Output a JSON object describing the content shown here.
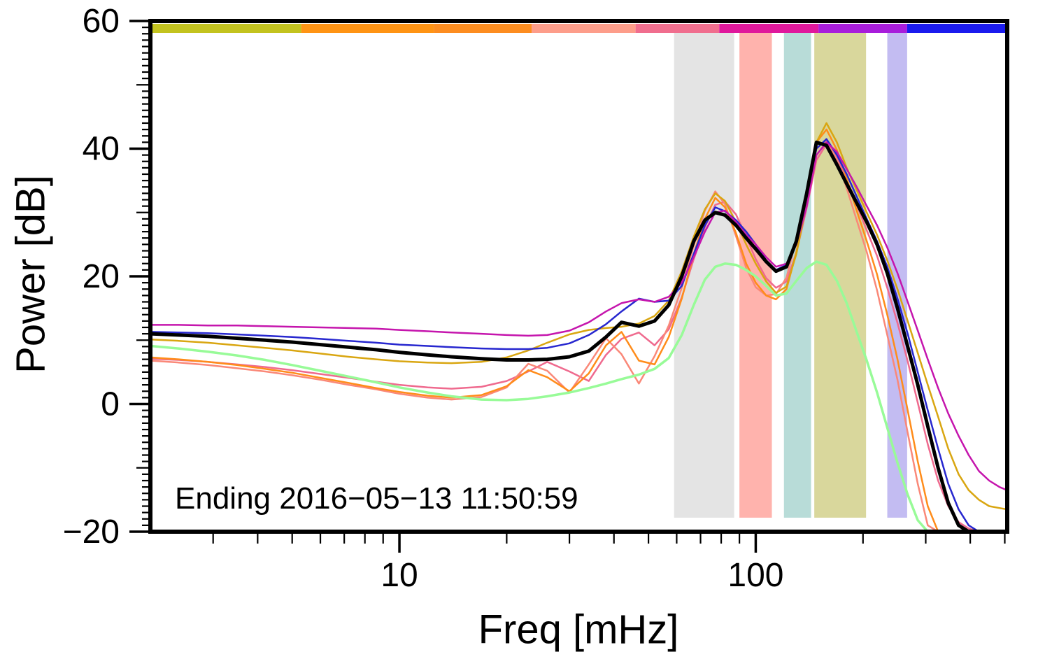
{
  "chart_data": {
    "type": "line",
    "title": "",
    "xlabel": "Freq [mHz]",
    "ylabel": "Power [dB]",
    "annotation": "Ending 2016−05−13 11:50:59",
    "xscale": "log",
    "xlim": [
      2,
      508
    ],
    "ylim": [
      -20,
      60
    ],
    "grid": false,
    "legend": null,
    "frame_color": "#000000",
    "background_color": "#ffffff",
    "y_major_ticks": [
      -20,
      0,
      20,
      40,
      60
    ],
    "y_major_tick_labels": [
      "−20",
      "0",
      "20",
      "40",
      "60"
    ],
    "y_minor_step": 1,
    "x_major_ticks": [
      10,
      100
    ],
    "x_major_tick_labels": [
      "10",
      "100"
    ],
    "x_minor_ticks": [
      3,
      4,
      5,
      6,
      7,
      8,
      9,
      20,
      30,
      40,
      50,
      60,
      70,
      80,
      90,
      200,
      300,
      400,
      500
    ],
    "bands": [
      {
        "name": "band-gray",
        "color": "#e4e4e4",
        "from": 59,
        "to": 87
      },
      {
        "name": "band-red",
        "color": "#ffb3ad",
        "from": 90,
        "to": 111
      },
      {
        "name": "band-teal",
        "color": "#b8dcd8",
        "from": 120,
        "to": 143
      },
      {
        "name": "band-olive",
        "color": "#d9d79c",
        "from": 146,
        "to": 204
      },
      {
        "name": "band-purple",
        "color": "#c3bcf2",
        "from": 234,
        "to": 266
      }
    ],
    "top_bar_segments": [
      {
        "color": "#c3c31f",
        "from": 2,
        "to": 5.3
      },
      {
        "color": "#ff9414",
        "from": 5.3,
        "to": 12.5
      },
      {
        "color": "#fd8d20",
        "from": 12.5,
        "to": 23.5
      },
      {
        "color": "#fd9d8a",
        "from": 23.5,
        "to": 46
      },
      {
        "color": "#f06e8e",
        "from": 46,
        "to": 79
      },
      {
        "color": "#e0189c",
        "from": 79,
        "to": 150
      },
      {
        "color": "#a81ddb",
        "from": 150,
        "to": 266
      },
      {
        "color": "#1b1bee",
        "from": 266,
        "to": 508
      }
    ],
    "x": [
      2,
      2.4,
      2.9,
      3.5,
      4.2,
      5,
      6,
      7.2,
      8.6,
      10,
      12,
      14,
      17,
      20,
      23,
      26,
      30,
      34,
      38,
      42,
      47,
      52,
      57,
      62,
      67,
      72,
      77,
      82,
      88,
      94,
      100,
      107,
      114,
      122,
      130,
      139,
      148,
      158,
      169,
      180,
      192,
      205,
      219,
      234,
      250,
      267,
      285,
      304,
      325,
      347,
      371,
      396,
      423,
      452,
      483,
      508
    ],
    "series": [
      {
        "name": "spectrum-pink",
        "color": "#ef6a8e",
        "width": 2.5,
        "values": [
          7.1,
          6.9,
          6.6,
          6.2,
          5.8,
          5.3,
          4.7,
          4.1,
          3.5,
          3.0,
          2.6,
          2.4,
          2.7,
          3.6,
          5.1,
          6.6,
          5.1,
          3.6,
          7.7,
          10.2,
          11.2,
          9.2,
          11.7,
          16.7,
          22.7,
          27.7,
          31.2,
          31.7,
          29.7,
          26.2,
          22.7,
          19.7,
          18.2,
          19.2,
          23.7,
          30.7,
          38.2,
          40.7,
          38.7,
          35.2,
          31.2,
          27.2,
          23.2,
          18.2,
          12.7,
          6.7,
          0.2,
          -6.3,
          -12.0,
          -16.0,
          -18.5,
          -19.5,
          -20,
          -20,
          -20,
          -20
        ]
      },
      {
        "name": "spectrum-salmon",
        "color": "#fa8878",
        "width": 2.5,
        "values": [
          6.8,
          6.5,
          6.1,
          5.6,
          5.1,
          4.5,
          3.8,
          3.0,
          2.3,
          1.6,
          1.0,
          0.7,
          1.1,
          2.6,
          6.3,
          5.2,
          1.8,
          6.2,
          10.3,
          7.8,
          3.2,
          7.5,
          12.3,
          18.2,
          24.8,
          30.3,
          33.3,
          31.3,
          26.3,
          21.3,
          18.3,
          17.0,
          17.2,
          19.8,
          25.8,
          33.3,
          40.0,
          41.3,
          38.3,
          33.8,
          28.8,
          23.8,
          17.8,
          10.8,
          3.8,
          -4.5,
          -12.5,
          -19.0,
          -20,
          -20,
          -20,
          -20,
          -20,
          -20,
          -20,
          -20
        ]
      },
      {
        "name": "spectrum-orange",
        "color": "#ff8c1a",
        "width": 2.5,
        "values": [
          7.3,
          7.0,
          6.6,
          6.1,
          5.5,
          4.9,
          4.1,
          3.3,
          2.5,
          1.9,
          1.3,
          1.0,
          1.4,
          2.8,
          5.3,
          4.2,
          2.0,
          4.8,
          9.2,
          11.3,
          6.8,
          6.2,
          10.5,
          16.5,
          23.5,
          29.0,
          32.3,
          30.8,
          26.8,
          22.0,
          19.0,
          17.0,
          16.4,
          18.0,
          23.8,
          32.0,
          41.0,
          43.0,
          39.8,
          35.3,
          30.3,
          25.5,
          20.3,
          14.0,
          7.0,
          -1.0,
          -9.0,
          -16.0,
          -20,
          -20,
          -20,
          -20,
          -20,
          -20,
          -20,
          -20
        ]
      },
      {
        "name": "spectrum-gold",
        "color": "#d9a611",
        "width": 2.5,
        "values": [
          10.1,
          9.9,
          9.6,
          9.2,
          8.8,
          8.4,
          7.9,
          7.4,
          7.0,
          6.7,
          6.5,
          6.4,
          6.6,
          7.3,
          8.4,
          9.6,
          10.9,
          11.6,
          11.9,
          12.1,
          12.6,
          13.8,
          16.2,
          20.8,
          26.2,
          30.5,
          33.0,
          31.8,
          28.5,
          25.0,
          22.0,
          19.2,
          17.4,
          18.4,
          23.5,
          31.5,
          41.0,
          44.0,
          41.0,
          37.0,
          33.5,
          30.0,
          26.5,
          22.5,
          18.0,
          13.0,
          8.0,
          3.0,
          -2.0,
          -7.0,
          -11.0,
          -13.5,
          -15.0,
          -16.0,
          -16.3,
          -16.5
        ]
      },
      {
        "name": "spectrum-blue",
        "color": "#2727cf",
        "width": 2.5,
        "values": [
          11.3,
          11.2,
          11.1,
          10.9,
          10.7,
          10.5,
          10.2,
          9.9,
          9.6,
          9.3,
          9.1,
          8.9,
          8.7,
          8.6,
          8.6,
          8.8,
          9.5,
          10.8,
          12.5,
          14.5,
          16.5,
          16.0,
          16.2,
          18.5,
          23.5,
          28.0,
          30.8,
          30.2,
          28.8,
          27.0,
          25.0,
          22.5,
          21.0,
          21.8,
          25.5,
          32.5,
          40.0,
          41.5,
          39.0,
          36.0,
          32.5,
          29.0,
          25.5,
          21.5,
          16.5,
          11.0,
          5.0,
          -1.0,
          -7.0,
          -12.5,
          -16.5,
          -19.0,
          -20,
          -20,
          -20,
          -20
        ]
      },
      {
        "name": "spectrum-magenta",
        "color": "#c515ad",
        "width": 2.5,
        "values": [
          12.4,
          12.4,
          12.3,
          12.3,
          12.2,
          12.1,
          12.0,
          11.9,
          11.8,
          11.6,
          11.4,
          11.2,
          11.0,
          10.8,
          10.7,
          10.8,
          11.5,
          12.8,
          14.5,
          15.8,
          16.4,
          16.0,
          16.8,
          19.0,
          23.0,
          27.0,
          30.0,
          30.3,
          28.5,
          26.5,
          25.0,
          23.0,
          21.5,
          22.0,
          25.0,
          31.0,
          39.0,
          41.0,
          39.5,
          36.8,
          34.0,
          31.0,
          28.0,
          24.5,
          20.5,
          16.0,
          11.5,
          7.0,
          2.5,
          -1.5,
          -5.0,
          -8.0,
          -10.5,
          -12.0,
          -13.0,
          -13.5
        ]
      },
      {
        "name": "spectrum-lightgreen",
        "color": "#98fb98",
        "width": 3.5,
        "values": [
          9.1,
          8.7,
          8.2,
          7.6,
          6.9,
          6.1,
          5.2,
          4.3,
          3.4,
          2.6,
          1.8,
          1.2,
          0.7,
          0.6,
          0.8,
          1.2,
          1.8,
          2.5,
          3.2,
          3.9,
          4.6,
          5.5,
          7.2,
          10.8,
          15.5,
          19.5,
          21.5,
          22.0,
          21.8,
          21.0,
          20.0,
          18.5,
          17.0,
          17.3,
          19.3,
          21.3,
          22.3,
          21.8,
          19.3,
          15.8,
          11.3,
          6.8,
          1.8,
          -3.7,
          -9.2,
          -14.2,
          -18.2,
          -20,
          -20,
          -20,
          -20,
          -20,
          -20,
          -20,
          -20,
          -20
        ]
      },
      {
        "name": "spectrum-mean",
        "color": "#000000",
        "width": 5,
        "values": [
          11.0,
          10.8,
          10.6,
          10.3,
          10.0,
          9.7,
          9.3,
          8.9,
          8.5,
          8.1,
          7.7,
          7.4,
          7.1,
          6.9,
          6.9,
          7.0,
          7.4,
          8.3,
          10.5,
          12.8,
          12.2,
          13.0,
          15.5,
          20.0,
          25.5,
          28.8,
          30.0,
          29.6,
          28.0,
          26.0,
          24.3,
          22.3,
          20.8,
          21.5,
          25.5,
          33.0,
          41.0,
          40.5,
          37.5,
          34.5,
          31.5,
          28.5,
          25.0,
          20.5,
          15.0,
          9.0,
          3.0,
          -3.5,
          -10.0,
          -15.5,
          -19.0,
          -20,
          -20,
          -20,
          -20,
          -20
        ]
      }
    ]
  }
}
